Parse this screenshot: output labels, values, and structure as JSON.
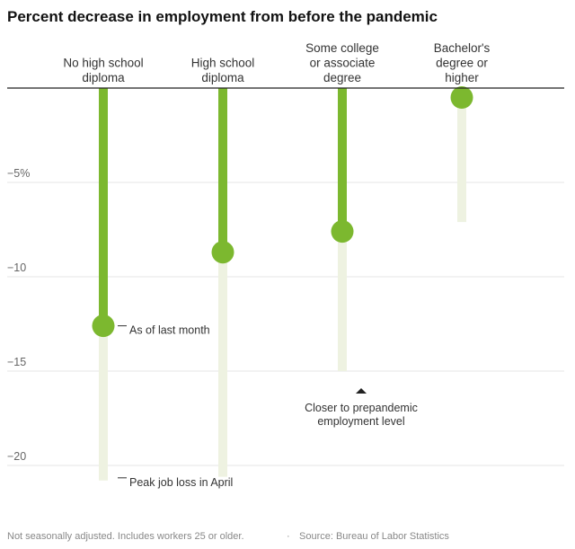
{
  "chart_data": {
    "type": "dot-range",
    "title": "Percent decrease in employment from before the pandemic",
    "categories": [
      [
        "No high school",
        "diploma"
      ],
      [
        "High school",
        "diploma"
      ],
      [
        "Some college",
        "or associate",
        "degree"
      ],
      [
        "Bachelor's",
        "degree or",
        "higher"
      ]
    ],
    "series": [
      {
        "name": "As of last month",
        "values": [
          -12.6,
          -8.7,
          -7.6,
          -0.5
        ]
      },
      {
        "name": "Peak job loss in April",
        "values": [
          -20.8,
          -20.6,
          -15.0,
          -7.1
        ]
      }
    ],
    "yticks": [
      {
        "value": -5,
        "label": "−5%"
      },
      {
        "value": -10,
        "label": "−10"
      },
      {
        "value": -15,
        "label": "−15"
      },
      {
        "value": -20,
        "label": "−20"
      }
    ],
    "ylim": [
      0,
      -21
    ],
    "annotations": {
      "current": "As of last month",
      "peak": "Peak job loss in April",
      "direction": [
        "Closer to prepandemic",
        "employment level"
      ]
    },
    "colors": {
      "current": "#7cb82f",
      "peak": "#eef2e1",
      "grid": "#e4e4e4",
      "axis": "#222222"
    }
  },
  "footer": {
    "note": "Not seasonally adjusted. Includes workers 25 or older.",
    "separator": "·",
    "source": "Source: Bureau of Labor Statistics"
  }
}
